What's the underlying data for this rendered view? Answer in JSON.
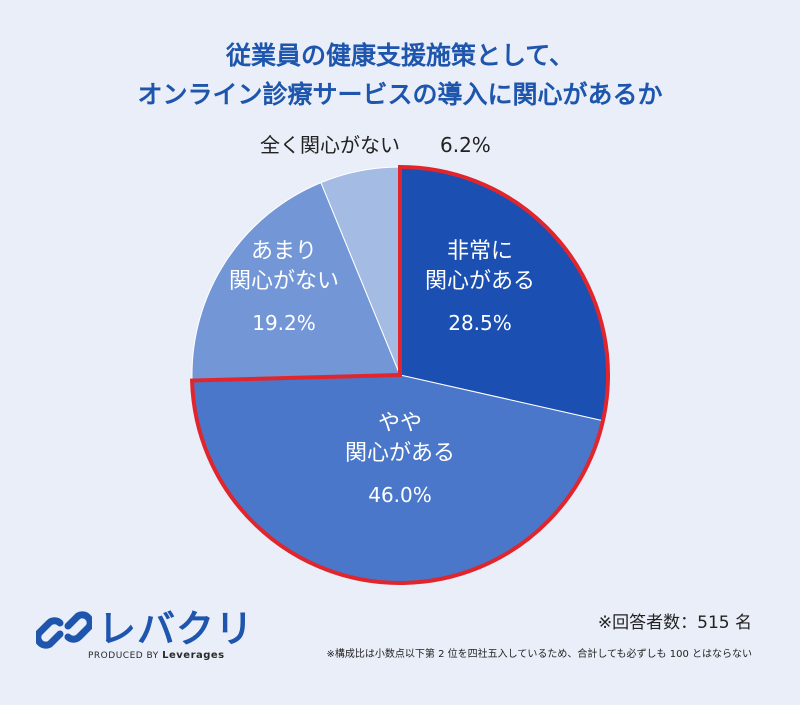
{
  "title_line1": "従業員の健康支援施策として、",
  "title_line2": "オンライン診療サービスの導入に関心があるか",
  "chart_data": {
    "type": "pie",
    "slices": [
      {
        "label_lines": [
          "非常に",
          "関心がある"
        ],
        "value": 28.5,
        "value_label": "28.5%",
        "color": "#1b4fb2",
        "highlight": true
      },
      {
        "label_lines": [
          "やや",
          "関心がある"
        ],
        "value": 46.0,
        "value_label": "46.0%",
        "color": "#4a77c9",
        "highlight": true
      },
      {
        "label_lines": [
          "あまり",
          "関心がない"
        ],
        "value": 19.2,
        "value_label": "19.2%",
        "color": "#7396d6",
        "highlight": false
      },
      {
        "label_lines": [
          "全く関心がない"
        ],
        "value": 6.2,
        "value_label": "6.2%",
        "color": "#a4bbe4",
        "highlight": false
      }
    ],
    "highlight_color": "#e0262c"
  },
  "respondents": "※回答者数：515 名",
  "footnote": "※構成比は小数点以下第 2 位を四社五入しているため、合計しても必ずしも 100 とはならない",
  "logo": {
    "name": "レバクリ",
    "produced_by": "PRODUCED BY",
    "company": "Leverages"
  }
}
